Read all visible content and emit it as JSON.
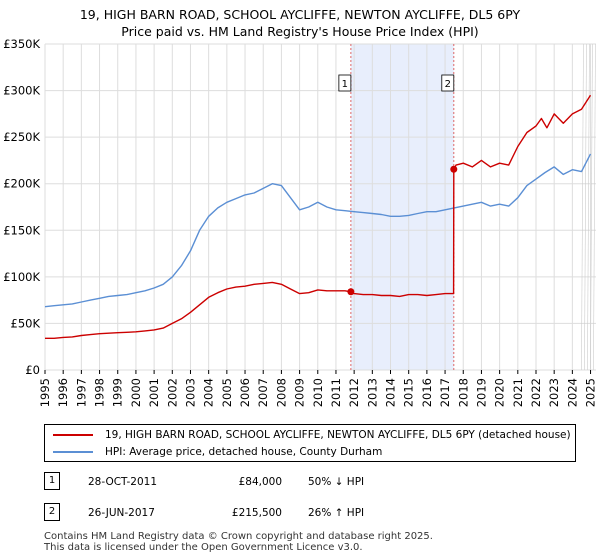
{
  "chart_data": {
    "type": "line",
    "title": "19, HIGH BARN ROAD, SCHOOL AYCLIFFE, NEWTON AYCLIFFE, DL5 6PY",
    "subtitle": "Price paid vs. HM Land Registry's House Price Index (HPI)",
    "xlabel": "",
    "ylabel": "",
    "xlim": [
      1995,
      2025.3
    ],
    "ylim": [
      0,
      350000
    ],
    "y_ticks": [
      {
        "value": 0,
        "label": "£0"
      },
      {
        "value": 50000,
        "label": "£50K"
      },
      {
        "value": 100000,
        "label": "£100K"
      },
      {
        "value": 150000,
        "label": "£150K"
      },
      {
        "value": 200000,
        "label": "£200K"
      },
      {
        "value": 250000,
        "label": "£250K"
      },
      {
        "value": 300000,
        "label": "£300K"
      },
      {
        "value": 350000,
        "label": "£350K"
      }
    ],
    "x_ticks": [
      "1995",
      "1996",
      "1997",
      "1998",
      "1999",
      "2000",
      "2001",
      "2002",
      "2003",
      "2004",
      "2005",
      "2006",
      "2007",
      "2008",
      "2009",
      "2010",
      "2011",
      "2012",
      "2013",
      "2014",
      "2015",
      "2016",
      "2017",
      "2018",
      "2019",
      "2020",
      "2021",
      "2022",
      "2023",
      "2024",
      "2025"
    ],
    "grid": true,
    "series": [
      {
        "name": "19, HIGH BARN ROAD, SCHOOL AYCLIFFE, NEWTON AYCLIFFE, DL5 6PY (detached house)",
        "color": "#cc0000",
        "x": [
          1995.0,
          1995.5,
          1996.0,
          1996.5,
          1997.0,
          1997.5,
          1998.0,
          1998.5,
          1999.0,
          1999.5,
          2000.0,
          2000.5,
          2001.0,
          2001.5,
          2002.0,
          2002.5,
          2003.0,
          2003.5,
          2004.0,
          2004.5,
          2005.0,
          2005.5,
          2006.0,
          2006.5,
          2007.0,
          2007.5,
          2008.0,
          2008.5,
          2009.0,
          2009.5,
          2010.0,
          2010.5,
          2011.0,
          2011.5,
          2011.82,
          2012.0,
          2012.5,
          2013.0,
          2013.5,
          2014.0,
          2014.5,
          2015.0,
          2015.5,
          2016.0,
          2016.5,
          2017.0,
          2017.47,
          2017.48,
          2017.6,
          2018.0,
          2018.5,
          2019.0,
          2019.5,
          2020.0,
          2020.5,
          2021.0,
          2021.5,
          2022.0,
          2022.3,
          2022.6,
          2023.0,
          2023.5,
          2024.0,
          2024.5,
          2025.0
        ],
        "y": [
          34000,
          34000,
          35000,
          35500,
          37000,
          38000,
          39000,
          39500,
          40000,
          40500,
          41000,
          42000,
          43000,
          45000,
          50000,
          55000,
          62000,
          70000,
          78000,
          83000,
          87000,
          89000,
          90000,
          92000,
          93000,
          94000,
          92000,
          87000,
          82000,
          83000,
          86000,
          85000,
          85000,
          85000,
          84000,
          82000,
          81000,
          81000,
          80000,
          80000,
          79000,
          81000,
          81000,
          80000,
          81000,
          82000,
          82000,
          215500,
          220000,
          222000,
          218000,
          225000,
          218000,
          222000,
          220000,
          240000,
          255000,
          262000,
          270000,
          260000,
          275000,
          265000,
          275000,
          280000,
          295000
        ]
      },
      {
        "name": "HPI: Average price, detached house, County Durham",
        "color": "#5b8fd4",
        "x": [
          1995.0,
          1995.5,
          1996.0,
          1996.5,
          1997.0,
          1997.5,
          1998.0,
          1998.5,
          1999.0,
          1999.5,
          2000.0,
          2000.5,
          2001.0,
          2001.5,
          2002.0,
          2002.5,
          2003.0,
          2003.5,
          2004.0,
          2004.5,
          2005.0,
          2005.5,
          2006.0,
          2006.5,
          2007.0,
          2007.5,
          2008.0,
          2008.5,
          2009.0,
          2009.5,
          2010.0,
          2010.5,
          2011.0,
          2011.5,
          2012.0,
          2012.5,
          2013.0,
          2013.5,
          2014.0,
          2014.5,
          2015.0,
          2015.5,
          2016.0,
          2016.5,
          2017.0,
          2017.5,
          2018.0,
          2018.5,
          2019.0,
          2019.5,
          2020.0,
          2020.5,
          2021.0,
          2021.5,
          2022.0,
          2022.5,
          2023.0,
          2023.5,
          2024.0,
          2024.5,
          2025.0
        ],
        "y": [
          68000,
          69000,
          70000,
          71000,
          73000,
          75000,
          77000,
          79000,
          80000,
          81000,
          83000,
          85000,
          88000,
          92000,
          100000,
          112000,
          128000,
          150000,
          165000,
          174000,
          180000,
          184000,
          188000,
          190000,
          195000,
          200000,
          198000,
          185000,
          172000,
          175000,
          180000,
          175000,
          172000,
          171000,
          170000,
          169000,
          168000,
          167000,
          165000,
          165000,
          166000,
          168000,
          170000,
          170000,
          172000,
          174000,
          176000,
          178000,
          180000,
          176000,
          178000,
          176000,
          185000,
          198000,
          205000,
          212000,
          218000,
          210000,
          215000,
          213000,
          232000
        ]
      }
    ],
    "annotations": [
      {
        "label": "1",
        "x": 2011.82,
        "value": 84000,
        "shade_to": 2017.48
      },
      {
        "label": "2",
        "x": 2017.48,
        "value": 215500
      }
    ]
  },
  "legend": {
    "items": [
      {
        "label": "19, HIGH BARN ROAD, SCHOOL AYCLIFFE, NEWTON AYCLIFFE, DL5 6PY (detached house)",
        "color": "#cc0000"
      },
      {
        "label": "HPI: Average price, detached house, County Durham",
        "color": "#5b8fd4"
      }
    ]
  },
  "sales": [
    {
      "num": "1",
      "date": "28-OCT-2011",
      "price": "£84,000",
      "hpi": "50% ↓ HPI"
    },
    {
      "num": "2",
      "date": "26-JUN-2017",
      "price": "£215,500",
      "hpi": "26% ↑ HPI"
    }
  ],
  "footer": {
    "line1": "Contains HM Land Registry data © Crown copyright and database right 2025.",
    "line2": "This data is licensed under the Open Government Licence v3.0."
  }
}
